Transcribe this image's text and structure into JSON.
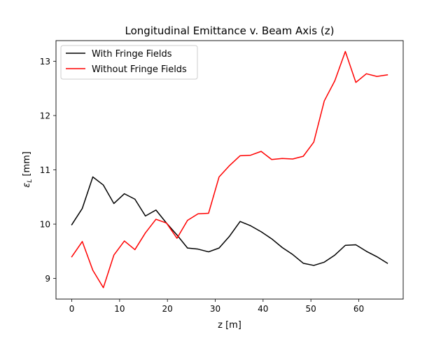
{
  "chart_data": {
    "type": "line",
    "title": "Longitudinal Emittance v. Beam Axis (z)",
    "xlabel": "z [m]",
    "ylabel_main": "ε",
    "ylabel_sub": "L",
    "ylabel_unit": " [mm]",
    "xlim": [
      -3.3,
      69.3
    ],
    "ylim": [
      8.62,
      13.38
    ],
    "xticks": [
      0,
      10,
      20,
      30,
      40,
      50,
      60
    ],
    "yticks": [
      9,
      10,
      11,
      12,
      13
    ],
    "legend_position": "top-left",
    "grid": false,
    "x": [
      0,
      2.2,
      4.4,
      6.6,
      8.8,
      11.0,
      13.2,
      15.4,
      17.6,
      19.8,
      22.0,
      24.2,
      26.4,
      28.6,
      30.8,
      33.0,
      35.2,
      37.4,
      39.6,
      41.8,
      44.0,
      46.2,
      48.4,
      50.6,
      52.8,
      55.0,
      57.2,
      59.4,
      61.6,
      63.8,
      66.0
    ],
    "series": [
      {
        "name": "With Fringe Fields",
        "color": "#000000",
        "values": [
          9.99,
          10.29,
          10.87,
          10.72,
          10.38,
          10.56,
          10.46,
          10.15,
          10.26,
          10.02,
          9.8,
          9.56,
          9.54,
          9.49,
          9.56,
          9.78,
          10.05,
          9.97,
          9.86,
          9.73,
          9.57,
          9.44,
          9.28,
          9.24,
          9.3,
          9.43,
          9.61,
          9.62,
          9.5,
          9.4,
          9.28
        ]
      },
      {
        "name": "Without Fringe Fields",
        "color": "#ff0000",
        "values": [
          9.4,
          9.68,
          9.15,
          8.83,
          9.43,
          9.69,
          9.53,
          9.84,
          10.09,
          10.02,
          9.74,
          10.07,
          10.19,
          10.2,
          10.87,
          11.08,
          11.26,
          11.27,
          11.34,
          11.19,
          11.21,
          11.2,
          11.25,
          11.51,
          12.27,
          12.64,
          13.18,
          12.61,
          12.77,
          12.72,
          12.75
        ]
      }
    ]
  }
}
